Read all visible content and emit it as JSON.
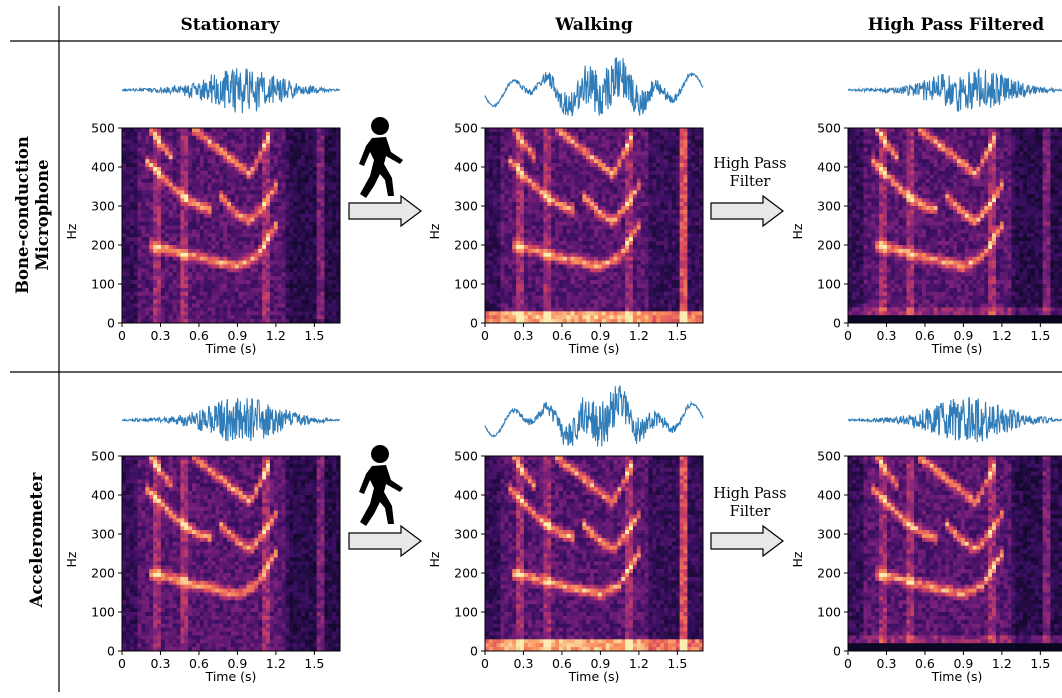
{
  "column_headers": [
    "Stationary",
    "Walking",
    "High Pass Filtered"
  ],
  "row_headers": [
    "Bone-conduction\nMicrophone",
    "Accelerometer"
  ],
  "arrow_labels": {
    "filter_line1": "High Pass",
    "filter_line2": "Filter"
  },
  "icons": {
    "walking": "walking-person-icon",
    "arrow": "right-arrow-icon"
  },
  "colors": {
    "waveform": "#2f7cb8",
    "spectrogram_low": "#0d0820",
    "spectrogram_high": "#fcedb0"
  },
  "axes": {
    "ylabel": "Hz",
    "xlabel": "Time (s)",
    "yticks": [
      "0",
      "100",
      "200",
      "300",
      "400",
      "500"
    ],
    "xticks": [
      "0",
      "0.3",
      "0.6",
      "0.9",
      "1.2",
      "1.5"
    ]
  },
  "panels": [
    {
      "row": 0,
      "col": 0,
      "name": "bone-stationary"
    },
    {
      "row": 0,
      "col": 1,
      "name": "bone-walking"
    },
    {
      "row": 0,
      "col": 2,
      "name": "bone-highpass"
    },
    {
      "row": 1,
      "col": 0,
      "name": "accel-stationary"
    },
    {
      "row": 1,
      "col": 1,
      "name": "accel-walking"
    },
    {
      "row": 1,
      "col": 2,
      "name": "accel-highpass"
    }
  ]
}
